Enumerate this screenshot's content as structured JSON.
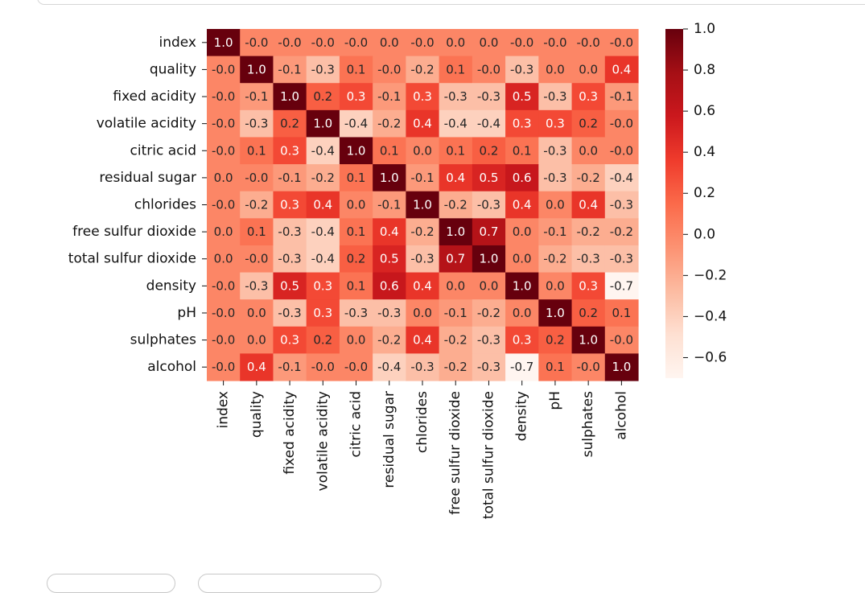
{
  "chart_data": {
    "type": "heatmap",
    "title": "",
    "labels": [
      "index",
      "quality",
      "fixed acidity",
      "volatile acidity",
      "citric acid",
      "residual sugar",
      "chlorides",
      "free sulfur dioxide",
      "total sulfur dioxide",
      "density",
      "pH",
      "sulphates",
      "alcohol"
    ],
    "values": [
      [
        1.0,
        -0.0,
        -0.0,
        -0.0,
        -0.0,
        0.0,
        -0.0,
        0.0,
        0.0,
        -0.0,
        -0.0,
        -0.0,
        -0.0
      ],
      [
        -0.0,
        1.0,
        -0.1,
        -0.3,
        0.1,
        -0.0,
        -0.2,
        0.1,
        -0.0,
        -0.3,
        0.0,
        0.0,
        0.4
      ],
      [
        -0.0,
        -0.1,
        1.0,
        0.2,
        0.3,
        -0.1,
        0.3,
        -0.3,
        -0.3,
        0.5,
        -0.3,
        0.3,
        -0.1
      ],
      [
        -0.0,
        -0.3,
        0.2,
        1.0,
        -0.4,
        -0.2,
        0.4,
        -0.4,
        -0.4,
        0.3,
        0.3,
        0.2,
        -0.0
      ],
      [
        -0.0,
        0.1,
        0.3,
        -0.4,
        1.0,
        0.1,
        0.0,
        0.1,
        0.2,
        0.1,
        -0.3,
        0.0,
        -0.0
      ],
      [
        0.0,
        -0.0,
        -0.1,
        -0.2,
        0.1,
        1.0,
        -0.1,
        0.4,
        0.5,
        0.6,
        -0.3,
        -0.2,
        -0.4
      ],
      [
        -0.0,
        -0.2,
        0.3,
        0.4,
        0.0,
        -0.1,
        1.0,
        -0.2,
        -0.3,
        0.4,
        0.0,
        0.4,
        -0.3
      ],
      [
        0.0,
        0.1,
        -0.3,
        -0.4,
        0.1,
        0.4,
        -0.2,
        1.0,
        0.7,
        0.0,
        -0.1,
        -0.2,
        -0.2
      ],
      [
        0.0,
        -0.0,
        -0.3,
        -0.4,
        0.2,
        0.5,
        -0.3,
        0.7,
        1.0,
        0.0,
        -0.2,
        -0.3,
        -0.3
      ],
      [
        -0.0,
        -0.3,
        0.5,
        0.3,
        0.1,
        0.6,
        0.4,
        0.0,
        0.0,
        1.0,
        0.0,
        0.3,
        -0.7
      ],
      [
        -0.0,
        0.0,
        -0.3,
        0.3,
        -0.3,
        -0.3,
        0.0,
        -0.1,
        -0.2,
        0.0,
        1.0,
        0.2,
        0.1
      ],
      [
        -0.0,
        0.0,
        0.3,
        0.2,
        0.0,
        -0.2,
        0.4,
        -0.2,
        -0.3,
        0.3,
        0.2,
        1.0,
        -0.0
      ],
      [
        -0.0,
        0.4,
        -0.1,
        -0.0,
        -0.0,
        -0.4,
        -0.3,
        -0.2,
        -0.3,
        -0.7,
        0.1,
        -0.0,
        1.0
      ]
    ],
    "colorbar": {
      "vmin": -0.7,
      "vmax": 1.0,
      "ticks": [
        1.0,
        0.8,
        0.6,
        0.4,
        0.2,
        0.0,
        -0.2,
        -0.4,
        -0.6
      ],
      "tick_labels": [
        "1.0",
        "0.8",
        "0.6",
        "0.4",
        "0.2",
        "0.0",
        "−0.2",
        "−0.4",
        "−0.6"
      ],
      "colormap": "Reds"
    },
    "annotation_format": "0.1f",
    "colors": {
      "low": "#fff5f0",
      "high": "#67000d"
    }
  }
}
